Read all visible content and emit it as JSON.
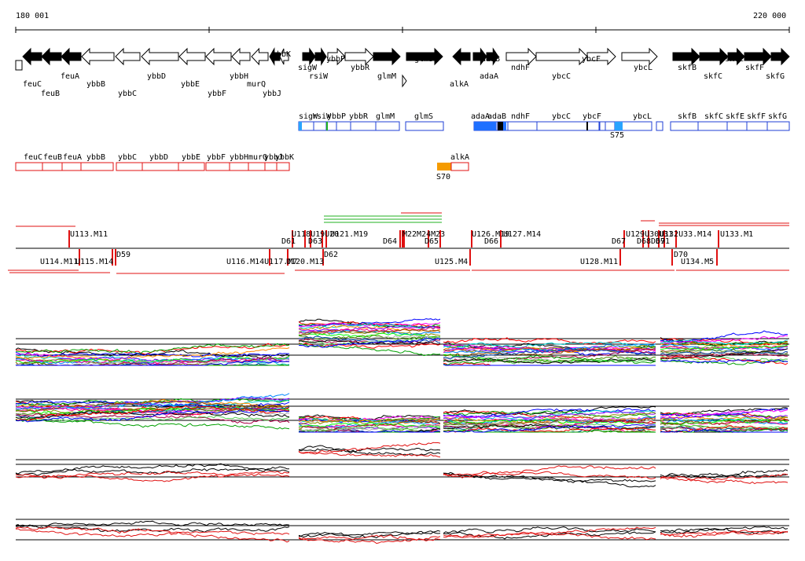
{
  "ruler": {
    "start_label": "180 001",
    "end_label": "220 000"
  },
  "colors": {
    "gene_fill": "#000000",
    "outline_blue": "#1f3fd6",
    "blue_fill": "#1f6fff",
    "light_blue": "#29a3ff",
    "red": "#e01010",
    "orange": "#f59b00",
    "green": "#22b022",
    "trace_black": "#000000",
    "trace_red": "#e01010"
  },
  "genes_top": [
    {
      "name": "feuC",
      "strand": "-",
      "fill": true
    },
    {
      "name": "feuB",
      "strand": "-",
      "fill": true
    },
    {
      "name": "feuA",
      "strand": "-",
      "fill": true
    },
    {
      "name": "ybbB",
      "strand": "-",
      "fill": false
    },
    {
      "name": "ybbC",
      "strand": "-",
      "fill": false
    },
    {
      "name": "ybbD",
      "strand": "-",
      "fill": false
    },
    {
      "name": "ybbE",
      "strand": "-",
      "fill": false
    },
    {
      "name": "ybbF",
      "strand": "-",
      "fill": false
    },
    {
      "name": "ybbH",
      "strand": "-",
      "fill": false
    },
    {
      "name": "murQ",
      "strand": "-",
      "fill": false
    },
    {
      "name": "ybbJ",
      "strand": "-",
      "fill": true
    },
    {
      "name": "ybbK",
      "strand": "-",
      "fill": false
    },
    {
      "name": "sigW",
      "strand": "+",
      "fill": true
    },
    {
      "name": "rsiW",
      "strand": "+",
      "fill": true
    },
    {
      "name": "ybbP",
      "strand": "+",
      "fill": false
    },
    {
      "name": "ybbR",
      "strand": "+",
      "fill": false
    },
    {
      "name": "glmM",
      "strand": "+",
      "fill": true
    },
    {
      "name": "glmS",
      "strand": "+",
      "fill": true
    },
    {
      "name": "alkA",
      "strand": "-",
      "fill": true
    },
    {
      "name": "adaA",
      "strand": "+",
      "fill": true
    },
    {
      "name": "adaB",
      "strand": "+",
      "fill": true
    },
    {
      "name": "ndhF",
      "strand": "+",
      "fill": false
    },
    {
      "name": "ybcC",
      "strand": "+",
      "fill": false
    },
    {
      "name": "ybcF",
      "strand": "+",
      "fill": false
    },
    {
      "name": "ybcL",
      "strand": "+",
      "fill": false
    },
    {
      "name": "skfB",
      "strand": "+",
      "fill": true
    },
    {
      "name": "skfC",
      "strand": "+",
      "fill": true
    },
    {
      "name": "skfE",
      "strand": "+",
      "fill": true
    },
    {
      "name": "skfF",
      "strand": "+",
      "fill": true
    },
    {
      "name": "skfG",
      "strand": "+",
      "fill": true
    }
  ],
  "blue_track": {
    "labels": [
      "sigW",
      "rsiW",
      "ybbP",
      "ybbR",
      "glmM",
      "glmS",
      "adaA",
      "adaB",
      "ndhF",
      "ybcC",
      "ybcF",
      "ybcL",
      "skfB",
      "skfC",
      "skfE",
      "skfF",
      "skfG"
    ],
    "segment_label": "S75"
  },
  "red_track": {
    "labels": [
      "feuC",
      "feuB",
      "feuA",
      "ybbB",
      "ybbC",
      "ybbD",
      "ybbE",
      "ybbF",
      "ybbH",
      "murQ",
      "ybbJ",
      "ybbK"
    ],
    "orange_label": "alkA",
    "orange_segment": "S70"
  },
  "features_upper": [
    "U113.M11",
    "U118",
    "U119",
    "U120",
    "U121.M19",
    "D61",
    "D63",
    "D64",
    "M22",
    "M24",
    "D65",
    "U126.M19",
    "U127.M14",
    "D66",
    "U129",
    "U130",
    "U131",
    "U132",
    "U133.M1",
    "D67",
    "D68",
    "D69",
    "D71"
  ],
  "features_lower": [
    "U114.M11",
    "U115.M14",
    "D59",
    "U116.M14",
    "U117.M7",
    "U120.M13",
    "D62",
    "U125.M4",
    "U128.M11",
    "D70",
    "U134.M5"
  ],
  "features_lower_display": [
    "U114.M11",
    "U115.M14",
    "D59",
    "U116.M14U117.M7",
    "U120.M13",
    "D62",
    "U125.M4",
    "U128.M11",
    "D70",
    "U134.M5"
  ],
  "features_upper_display": [
    "U113.M11",
    "U118U19U20",
    "U121.M19",
    "D61",
    "D63",
    "D64",
    "M22M24M23",
    "D65",
    "U126.M19",
    "U127.M14",
    "D66",
    "D67",
    "D68D69",
    "U129U30U31",
    "U132U33.M14",
    "D71",
    "U133.M1"
  ]
}
